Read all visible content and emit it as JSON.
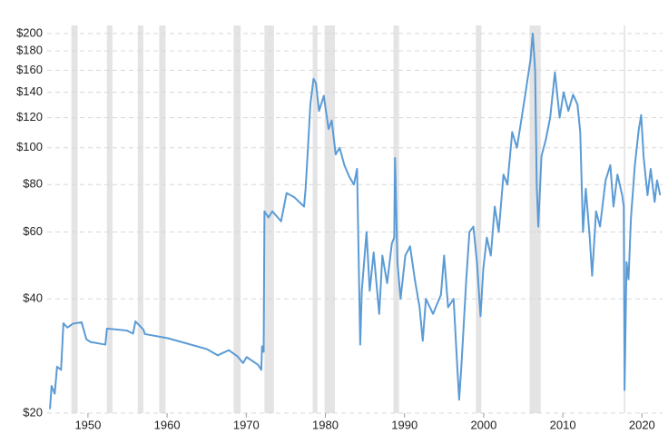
{
  "chart_data": {
    "type": "line",
    "log_scale_y": true,
    "grid": true,
    "xlim": [
      1944.85,
      2022.6
    ],
    "ylim": [
      20,
      210
    ],
    "xticks": [
      1950,
      1960,
      1970,
      1980,
      1990,
      2000,
      2010,
      2020
    ],
    "yticks": [
      {
        "value": 20,
        "label": "$20"
      },
      {
        "value": 40,
        "label": "$40"
      },
      {
        "value": 60,
        "label": "$60"
      },
      {
        "value": 80,
        "label": "$80"
      },
      {
        "value": 100,
        "label": "$100"
      },
      {
        "value": 120,
        "label": "$120"
      },
      {
        "value": 140,
        "label": "$140"
      },
      {
        "value": 160,
        "label": "$160"
      },
      {
        "value": 180,
        "label": "$180"
      },
      {
        "value": 200,
        "label": "$200"
      }
    ],
    "shaded_color": "#e4e4e4",
    "shaded_periods": [
      [
        1947.9,
        1948.7
      ],
      [
        1952.4,
        1953.1
      ],
      [
        1956.3,
        1957.0
      ],
      [
        1959.0,
        1959.8
      ],
      [
        1968.4,
        1969.3
      ],
      [
        1972.3,
        1973.5
      ],
      [
        1978.4,
        1979.0
      ],
      [
        1979.9,
        1981.2
      ],
      [
        1988.6,
        1989.3
      ],
      [
        1999.0,
        1999.7
      ],
      [
        2005.8,
        2007.2
      ],
      [
        2017.7,
        2017.9
      ]
    ],
    "x": [
      1945.2,
      1945.4,
      1945.8,
      1946.1,
      1946.6,
      1946.9,
      1947.4,
      1948.1,
      1949.2,
      1949.8,
      1950.3,
      1952.2,
      1952.4,
      1954.9,
      1955.7,
      1956.0,
      1957.0,
      1957.2,
      1960.1,
      1965.0,
      1966.4,
      1967.8,
      1968.9,
      1969.6,
      1970.05,
      1971.5,
      1971.9,
      1972.0,
      1972.2,
      1972.3,
      1972.8,
      1973.3,
      1974.4,
      1975.1,
      1976.1,
      1977.3,
      1977.5,
      1977.8,
      1978.1,
      1978.5,
      1978.8,
      1979.2,
      1979.8,
      1980.4,
      1980.8,
      1981.3,
      1981.8,
      1982.4,
      1983.0,
      1983.6,
      1984.0,
      1984.4,
      1984.6,
      1985.2,
      1985.6,
      1986.1,
      1986.8,
      1987.2,
      1987.8,
      1988.4,
      1988.7,
      1988.8,
      1989.1,
      1989.5,
      1990.1,
      1990.7,
      1991.3,
      1991.9,
      1992.3,
      1992.7,
      1993.6,
      1994.6,
      1995.0,
      1995.5,
      1996.2,
      1996.6,
      1996.9,
      1997.2,
      1997.8,
      1998.2,
      1998.7,
      1999.15,
      1999.6,
      1999.95,
      2000.4,
      2000.9,
      2001.4,
      2001.9,
      2002.5,
      2003.0,
      2003.6,
      2004.2,
      2004.8,
      2005.3,
      2005.9,
      2006.2,
      2006.5,
      2006.7,
      2006.9,
      2007.3,
      2007.85,
      2008.4,
      2009.0,
      2009.6,
      2010.1,
      2010.7,
      2011.3,
      2011.85,
      2012.2,
      2012.55,
      2012.9,
      2013.4,
      2013.7,
      2014.2,
      2014.7,
      2015.4,
      2016.0,
      2016.4,
      2016.9,
      2017.5,
      2017.7,
      2017.8,
      2018.05,
      2018.3,
      2018.6,
      2019.1,
      2019.6,
      2019.9,
      2020.2,
      2020.7,
      2021.1,
      2021.6,
      2021.9,
      2022.3
    ],
    "series": [
      {
        "color": "#5b9bd5",
        "values": [
          20.5,
          23.6,
          22.5,
          26.5,
          26,
          34.5,
          33.6,
          34.4,
          34.7,
          31.3,
          30.8,
          30.3,
          33.4,
          33,
          32.4,
          34.9,
          33.2,
          32.3,
          31.5,
          29.5,
          28.4,
          29.3,
          28.2,
          27.1,
          28.1,
          26.8,
          26,
          30,
          29,
          68,
          65.5,
          68,
          64,
          76,
          74,
          70,
          78,
          100,
          130,
          152,
          148,
          125,
          137,
          112,
          118,
          96,
          100,
          90,
          84,
          80,
          88,
          30.3,
          42,
          60,
          42,
          53,
          36.5,
          52,
          44,
          56,
          58,
          94,
          50,
          40,
          52,
          55,
          45,
          38,
          31,
          40,
          36.5,
          41,
          52,
          38,
          40,
          28,
          21.7,
          27,
          45,
          60,
          62,
          50,
          36,
          48,
          58,
          52,
          70,
          60,
          85,
          80,
          110,
          100,
          120,
          140,
          170,
          200,
          160,
          80,
          62,
          95,
          105,
          120,
          158,
          120,
          140,
          125,
          138,
          130,
          110,
          60,
          78,
          58,
          46,
          68,
          62,
          82,
          90,
          70,
          85,
          75,
          70,
          23,
          50,
          45,
          65,
          90,
          112,
          122,
          95,
          75,
          88,
          72,
          82,
          75
        ]
      }
    ]
  }
}
